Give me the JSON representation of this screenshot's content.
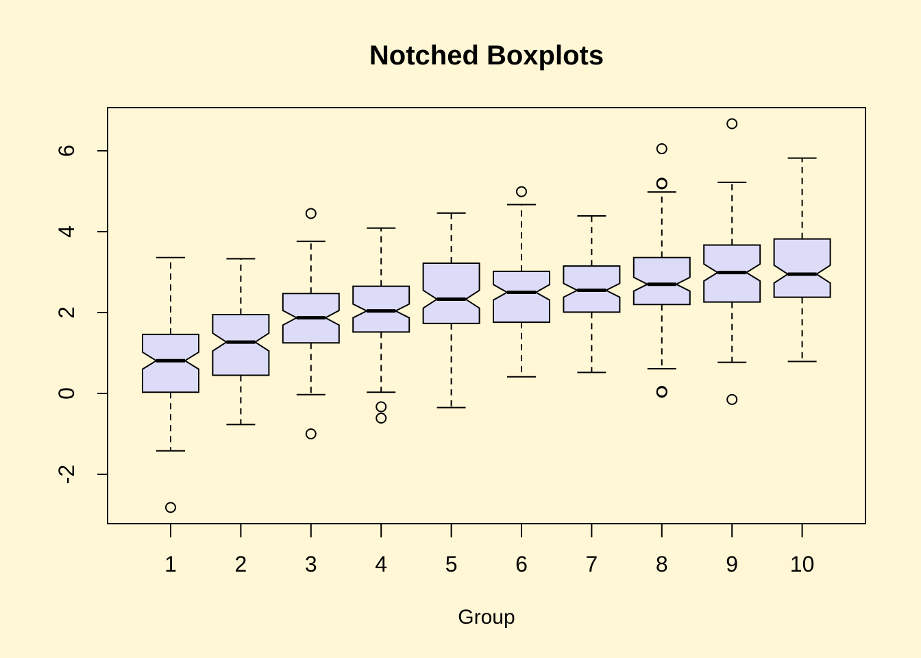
{
  "chart_data": {
    "type": "boxplot",
    "title": "Notched Boxplots",
    "xlabel": "Group",
    "ylabel": "",
    "notched": true,
    "ylim": [
      -3.2,
      7.1
    ],
    "y_ticks": [
      -2,
      0,
      2,
      4,
      6
    ],
    "categories": [
      "1",
      "2",
      "3",
      "4",
      "5",
      "6",
      "7",
      "8",
      "9",
      "10"
    ],
    "box_fill": "#DCDCF8",
    "background": "#FFF7D6",
    "grid": false,
    "boxes": [
      {
        "group": "1",
        "whisker_low": -1.42,
        "q1": 0.03,
        "median": 0.81,
        "q3": 1.46,
        "whisker_high": 3.36,
        "notch_low": 0.6,
        "notch_high": 1.02,
        "outliers": [
          -2.82
        ]
      },
      {
        "group": "2",
        "whisker_low": -0.77,
        "q1": 0.45,
        "median": 1.27,
        "q3": 1.95,
        "whisker_high": 3.33,
        "notch_low": 1.05,
        "notch_high": 1.49,
        "outliers": []
      },
      {
        "group": "3",
        "whisker_low": -0.03,
        "q1": 1.25,
        "median": 1.87,
        "q3": 2.47,
        "whisker_high": 3.76,
        "notch_low": 1.69,
        "notch_high": 2.05,
        "outliers": [
          -1.0,
          4.45
        ]
      },
      {
        "group": "4",
        "whisker_low": 0.03,
        "q1": 1.52,
        "median": 2.04,
        "q3": 2.65,
        "whisker_high": 4.09,
        "notch_low": 1.87,
        "notch_high": 2.21,
        "outliers": [
          -0.33,
          -0.61
        ]
      },
      {
        "group": "5",
        "whisker_low": -0.35,
        "q1": 1.73,
        "median": 2.33,
        "q3": 3.22,
        "whisker_high": 4.46,
        "notch_low": 2.11,
        "notch_high": 2.55,
        "outliers": []
      },
      {
        "group": "6",
        "whisker_low": 0.41,
        "q1": 1.76,
        "median": 2.5,
        "q3": 3.02,
        "whisker_high": 4.67,
        "notch_low": 2.31,
        "notch_high": 2.69,
        "outliers": [
          4.99
        ]
      },
      {
        "group": "7",
        "whisker_low": 0.52,
        "q1": 2.01,
        "median": 2.55,
        "q3": 3.15,
        "whisker_high": 4.39,
        "notch_low": 2.38,
        "notch_high": 2.72,
        "outliers": []
      },
      {
        "group": "8",
        "whisker_low": 0.61,
        "q1": 2.2,
        "median": 2.7,
        "q3": 3.36,
        "whisker_high": 4.98,
        "notch_low": 2.53,
        "notch_high": 2.87,
        "outliers": [
          0.03,
          0.05,
          5.18,
          5.2,
          6.05
        ]
      },
      {
        "group": "9",
        "whisker_low": 0.77,
        "q1": 2.26,
        "median": 2.99,
        "q3": 3.67,
        "whisker_high": 5.22,
        "notch_low": 2.78,
        "notch_high": 3.2,
        "outliers": [
          -0.15,
          6.67
        ]
      },
      {
        "group": "10",
        "whisker_low": 0.79,
        "q1": 2.38,
        "median": 2.95,
        "q3": 3.82,
        "whisker_high": 5.82,
        "notch_low": 2.73,
        "notch_high": 3.17,
        "outliers": []
      }
    ]
  }
}
